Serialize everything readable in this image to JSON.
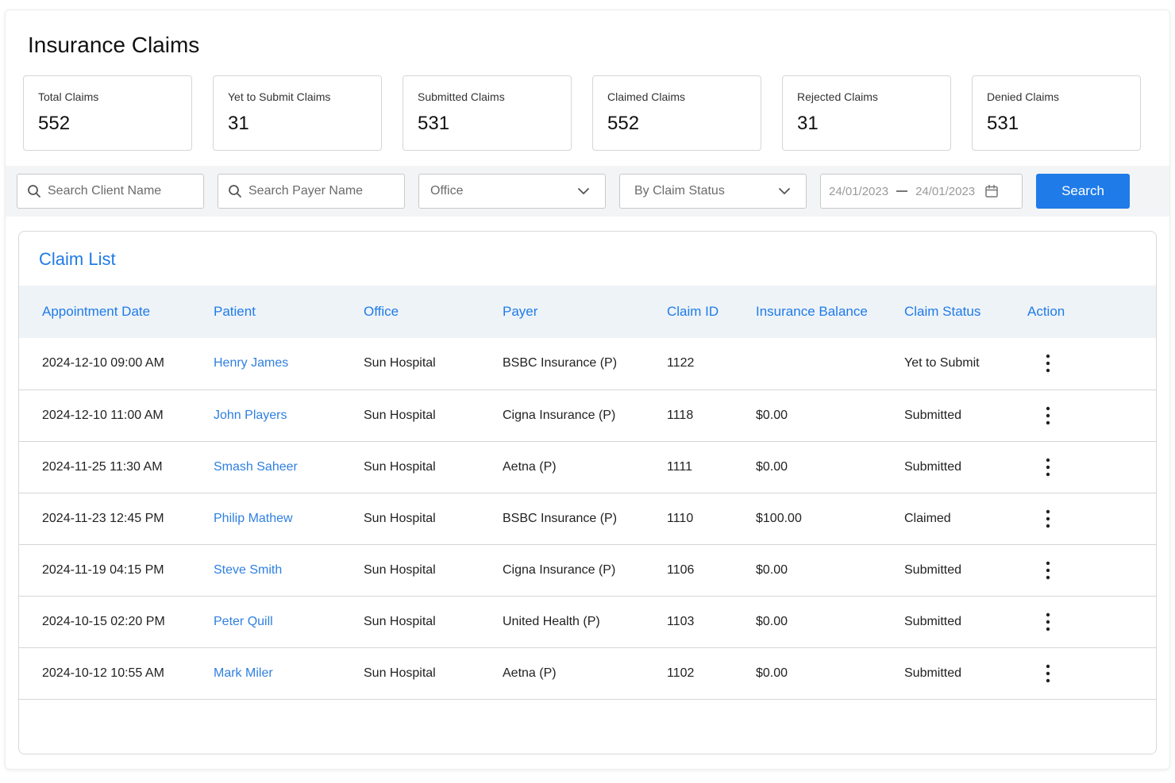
{
  "page": {
    "title": "Insurance Claims"
  },
  "stats": [
    {
      "label": "Total Claims",
      "value": "552"
    },
    {
      "label": "Yet to Submit Claims",
      "value": "31"
    },
    {
      "label": "Submitted Claims",
      "value": "531"
    },
    {
      "label": "Claimed Claims",
      "value": "552"
    },
    {
      "label": "Rejected Claims",
      "value": "31"
    },
    {
      "label": "Denied Claims",
      "value": "531"
    }
  ],
  "filters": {
    "client_search": {
      "placeholder": "Search Client Name",
      "value": ""
    },
    "payer_search": {
      "placeholder": "Search Payer Name",
      "value": ""
    },
    "office_select": {
      "selected": "Office"
    },
    "status_select": {
      "selected": "By Claim Status"
    },
    "date_range": {
      "from": "24/01/2023",
      "to": "24/01/2023"
    },
    "search_button": "Search"
  },
  "claim_list": {
    "title": "Claim List",
    "columns": [
      "Appointment Date",
      "Patient",
      "Office",
      "Payer",
      "Claim ID",
      "Insurance Balance",
      "Claim Status",
      "Action"
    ],
    "rows": [
      {
        "date": "2024-12-10 09:00 AM",
        "patient": "Henry James",
        "office": "Sun Hospital",
        "payer": "BSBC Insurance (P)",
        "claim_id": "1122",
        "balance": "",
        "status": "Yet to Submit"
      },
      {
        "date": "2024-12-10 11:00 AM",
        "patient": "John Players",
        "office": "Sun Hospital",
        "payer": "Cigna Insurance (P)",
        "claim_id": "1118",
        "balance": "$0.00",
        "status": "Submitted"
      },
      {
        "date": "2024-11-25 11:30 AM",
        "patient": "Smash Saheer",
        "office": "Sun Hospital",
        "payer": "Aetna (P)",
        "claim_id": "1111",
        "balance": "$0.00",
        "status": "Submitted"
      },
      {
        "date": "2024-11-23 12:45 PM",
        "patient": "Philip Mathew",
        "office": "Sun Hospital",
        "payer": "BSBC Insurance (P)",
        "claim_id": "1110",
        "balance": "$100.00",
        "status": "Claimed"
      },
      {
        "date": "2024-11-19 04:15 PM",
        "patient": "Steve Smith",
        "office": "Sun Hospital",
        "payer": "Cigna Insurance (P)",
        "claim_id": "1106",
        "balance": "$0.00",
        "status": "Submitted"
      },
      {
        "date": "2024-10-15 02:20 PM",
        "patient": "Peter Quill",
        "office": "Sun Hospital",
        "payer": "United Health (P)",
        "claim_id": "1103",
        "balance": "$0.00",
        "status": "Submitted"
      },
      {
        "date": "2024-10-12 10:55 AM",
        "patient": "Mark Miler",
        "office": "Sun Hospital",
        "payer": "Aetna (P)",
        "claim_id": "1102",
        "balance": "$0.00",
        "status": "Submitted"
      }
    ]
  },
  "colors": {
    "accent": "#1f7be8",
    "link": "#2f80e0",
    "claimed": "#2e9a3e",
    "header_bg": "#eef3f8"
  },
  "icons": {
    "search": "search-icon",
    "chevron": "chevron-down-icon",
    "calendar": "calendar-icon",
    "action": "more-vertical-icon"
  }
}
